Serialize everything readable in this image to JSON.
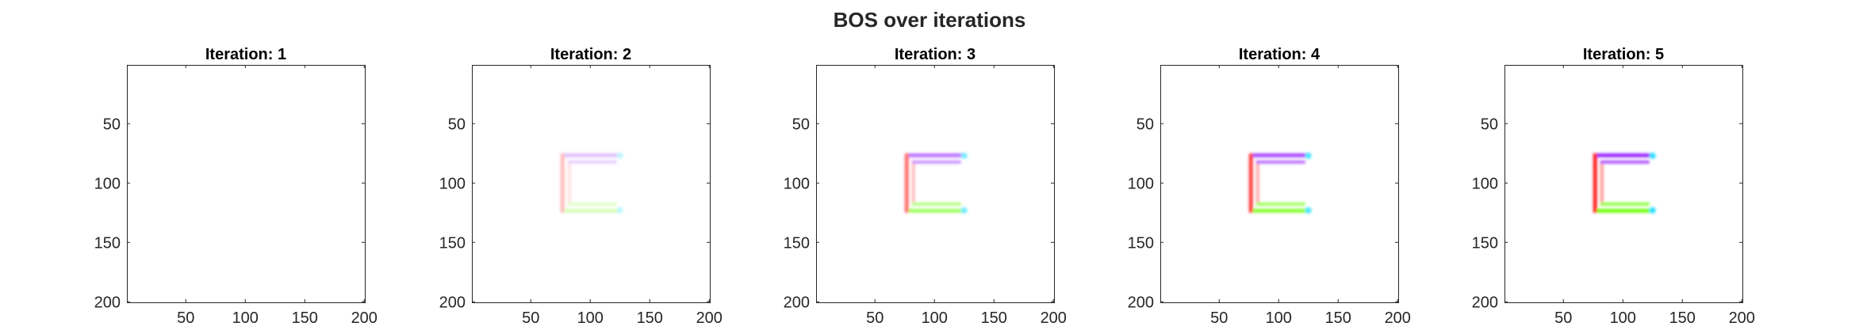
{
  "figure_title": "BOS over iterations",
  "colors": {
    "left_bar": "#ff2020",
    "top_bar": "#9a2bff",
    "bottom_bar": "#72ff10",
    "corner_accent": "#30e0ff",
    "axes_line": "#262626",
    "background": "#ffffff"
  },
  "chart_data": [
    {
      "type": "heatmap",
      "title": "Iteration: 1",
      "iteration": 1,
      "intensity": 0.0,
      "xlim": [
        0.5,
        200.5
      ],
      "ylim": [
        0.5,
        200.5
      ],
      "y_reversed": true,
      "xticks": [
        50,
        100,
        150,
        200
      ],
      "yticks": [
        50,
        100,
        150,
        200
      ],
      "xtick_labels": [
        "50",
        "100",
        "150",
        "200"
      ],
      "ytick_labels": [
        "50",
        "100",
        "150",
        "200"
      ],
      "shape": {
        "x_range": [
          75,
          125
        ],
        "y_range": [
          75,
          125
        ]
      }
    },
    {
      "type": "heatmap",
      "title": "Iteration: 2",
      "iteration": 2,
      "intensity": 0.3,
      "xlim": [
        0.5,
        200.5
      ],
      "ylim": [
        0.5,
        200.5
      ],
      "y_reversed": true,
      "xticks": [
        50,
        100,
        150,
        200
      ],
      "yticks": [
        50,
        100,
        150,
        200
      ],
      "xtick_labels": [
        "50",
        "100",
        "150",
        "200"
      ],
      "ytick_labels": [
        "50",
        "100",
        "150",
        "200"
      ],
      "shape": {
        "x_range": [
          75,
          125
        ],
        "y_range": [
          75,
          125
        ]
      }
    },
    {
      "type": "heatmap",
      "title": "Iteration: 3",
      "iteration": 3,
      "intensity": 0.65,
      "xlim": [
        0.5,
        200.5
      ],
      "ylim": [
        0.5,
        200.5
      ],
      "y_reversed": true,
      "xticks": [
        50,
        100,
        150,
        200
      ],
      "yticks": [
        50,
        100,
        150,
        200
      ],
      "xtick_labels": [
        "50",
        "100",
        "150",
        "200"
      ],
      "ytick_labels": [
        "50",
        "100",
        "150",
        "200"
      ],
      "shape": {
        "x_range": [
          75,
          125
        ],
        "y_range": [
          75,
          125
        ]
      }
    },
    {
      "type": "heatmap",
      "title": "Iteration: 4",
      "iteration": 4,
      "intensity": 0.85,
      "xlim": [
        0.5,
        200.5
      ],
      "ylim": [
        0.5,
        200.5
      ],
      "y_reversed": true,
      "xticks": [
        50,
        100,
        150,
        200
      ],
      "yticks": [
        50,
        100,
        150,
        200
      ],
      "xtick_labels": [
        "50",
        "100",
        "150",
        "200"
      ],
      "ytick_labels": [
        "50",
        "100",
        "150",
        "200"
      ],
      "shape": {
        "x_range": [
          75,
          125
        ],
        "y_range": [
          75,
          125
        ]
      }
    },
    {
      "type": "heatmap",
      "title": "Iteration: 5",
      "iteration": 5,
      "intensity": 1.0,
      "xlim": [
        0.5,
        200.5
      ],
      "ylim": [
        0.5,
        200.5
      ],
      "y_reversed": true,
      "xticks": [
        50,
        100,
        150,
        200
      ],
      "yticks": [
        50,
        100,
        150,
        200
      ],
      "xtick_labels": [
        "50",
        "100",
        "150",
        "200"
      ],
      "ytick_labels": [
        "50",
        "100",
        "150",
        "200"
      ],
      "shape": {
        "x_range": [
          75,
          125
        ],
        "y_range": [
          75,
          125
        ]
      }
    }
  ]
}
